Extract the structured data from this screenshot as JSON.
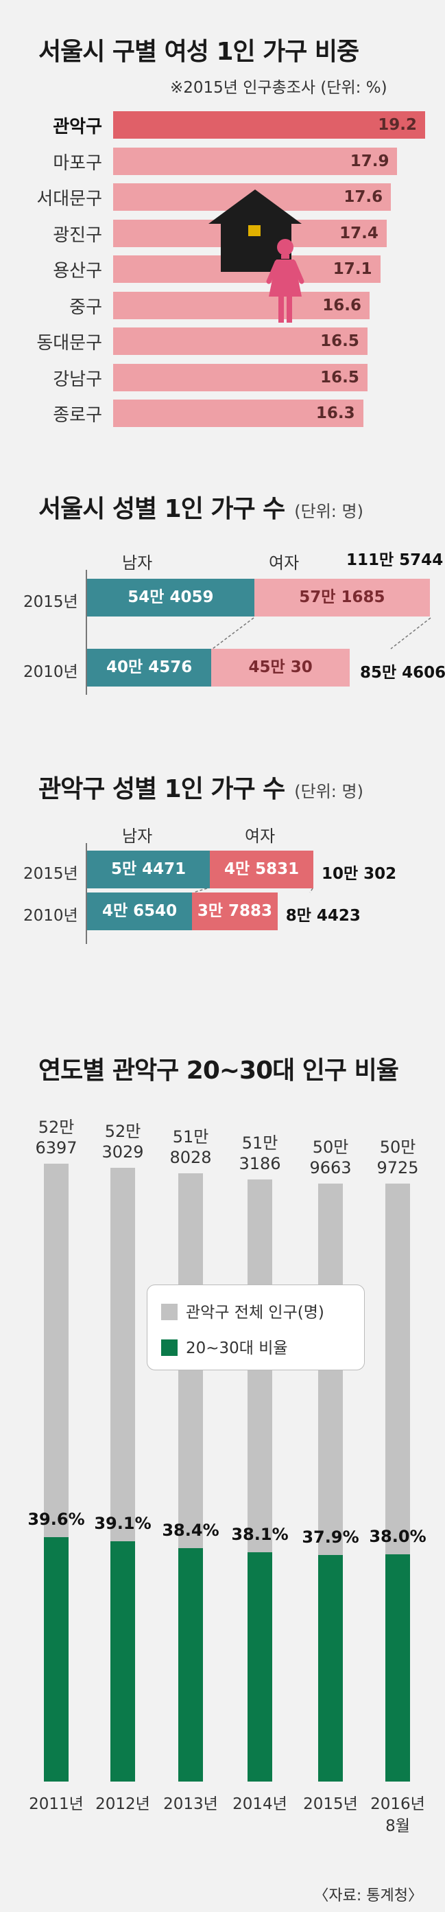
{
  "colors": {
    "district_highlight": "#e06068",
    "district_bar": "#eea0a6",
    "male": "#3a8a94",
    "female_2015_seoul": "#f0a8ae",
    "female": "#e36a70",
    "total_pop": "#c2c2c2",
    "ratio": "#0b7a4a"
  },
  "section1": {
    "title": "서울시 구별 여성 1인 가구 비중",
    "note": "※2015년 인구총조사 (단위: %)"
  },
  "section2": {
    "title": "서울시 성별 1인 가구 수",
    "unit": "(단위: 명)",
    "male_label": "남자",
    "female_label": "여자"
  },
  "section3": {
    "title": "관악구 성별 1인 가구 수",
    "unit": "(단위: 명)",
    "male_label": "남자",
    "female_label": "여자"
  },
  "section4": {
    "title": "연도별 관악구 20~30대 인구 비율"
  },
  "legend": {
    "total": "관악구 전체 인구(명)",
    "ratio": "20~30대 비율"
  },
  "source": "〈자료: 통계청〉",
  "chart_data": [
    {
      "type": "bar",
      "title": "서울시 구별 여성 1인 가구 비중",
      "subtitle": "※2015년 인구총조사 (단위: %)",
      "categories": [
        "관악구",
        "마포구",
        "서대문구",
        "광진구",
        "용산구",
        "중구",
        "동대문구",
        "강남구",
        "종로구"
      ],
      "values": [
        19.2,
        17.9,
        17.6,
        17.4,
        17.1,
        16.6,
        16.5,
        16.5,
        16.3
      ],
      "value_labels": [
        "19.2",
        "17.9",
        "17.6",
        "17.4",
        "17.1",
        "16.6",
        "16.5",
        "16.5",
        "16.3"
      ],
      "orientation": "horizontal"
    },
    {
      "type": "bar",
      "title": "서울시 성별 1인 가구 수",
      "stacked": true,
      "orientation": "horizontal",
      "categories": [
        "2015년",
        "2010년"
      ],
      "series": [
        {
          "name": "남자",
          "values": [
            544059,
            404576
          ],
          "labels": [
            "54만 4059",
            "40만 4576"
          ]
        },
        {
          "name": "여자",
          "values": [
            571685,
            450030
          ],
          "labels": [
            "57만 1685",
            "45만 30"
          ]
        }
      ],
      "totals": [
        "111만 5744",
        "85만 4606"
      ]
    },
    {
      "type": "bar",
      "title": "관악구 성별 1인 가구 수",
      "stacked": true,
      "orientation": "horizontal",
      "categories": [
        "2015년",
        "2010년"
      ],
      "series": [
        {
          "name": "남자",
          "values": [
            54471,
            46540
          ],
          "labels": [
            "5만 4471",
            "4만 6540"
          ]
        },
        {
          "name": "여자",
          "values": [
            45831,
            37883
          ],
          "labels": [
            "4만 5831",
            "3만 7883"
          ]
        }
      ],
      "totals": [
        "10만 302",
        "8만 4423"
      ]
    },
    {
      "type": "bar",
      "title": "연도별 관악구 20~30대 인구 비율",
      "categories": [
        "2011년",
        "2012년",
        "2013년",
        "2014년",
        "2015년",
        "2016년 8월"
      ],
      "series": [
        {
          "name": "관악구 전체 인구(명)",
          "values": [
            526397,
            523029,
            518028,
            513186,
            509663,
            509725
          ],
          "labels": [
            "52만 6397",
            "52만 3029",
            "51만 8028",
            "51만 3186",
            "50만 9663",
            "50만 9725"
          ]
        },
        {
          "name": "20~30대 비율",
          "values": [
            39.6,
            39.1,
            38.4,
            38.1,
            37.9,
            38.0
          ],
          "labels": [
            "39.6%",
            "39.1%",
            "38.4%",
            "38.1%",
            "37.9%",
            "38.0%"
          ]
        }
      ]
    }
  ]
}
